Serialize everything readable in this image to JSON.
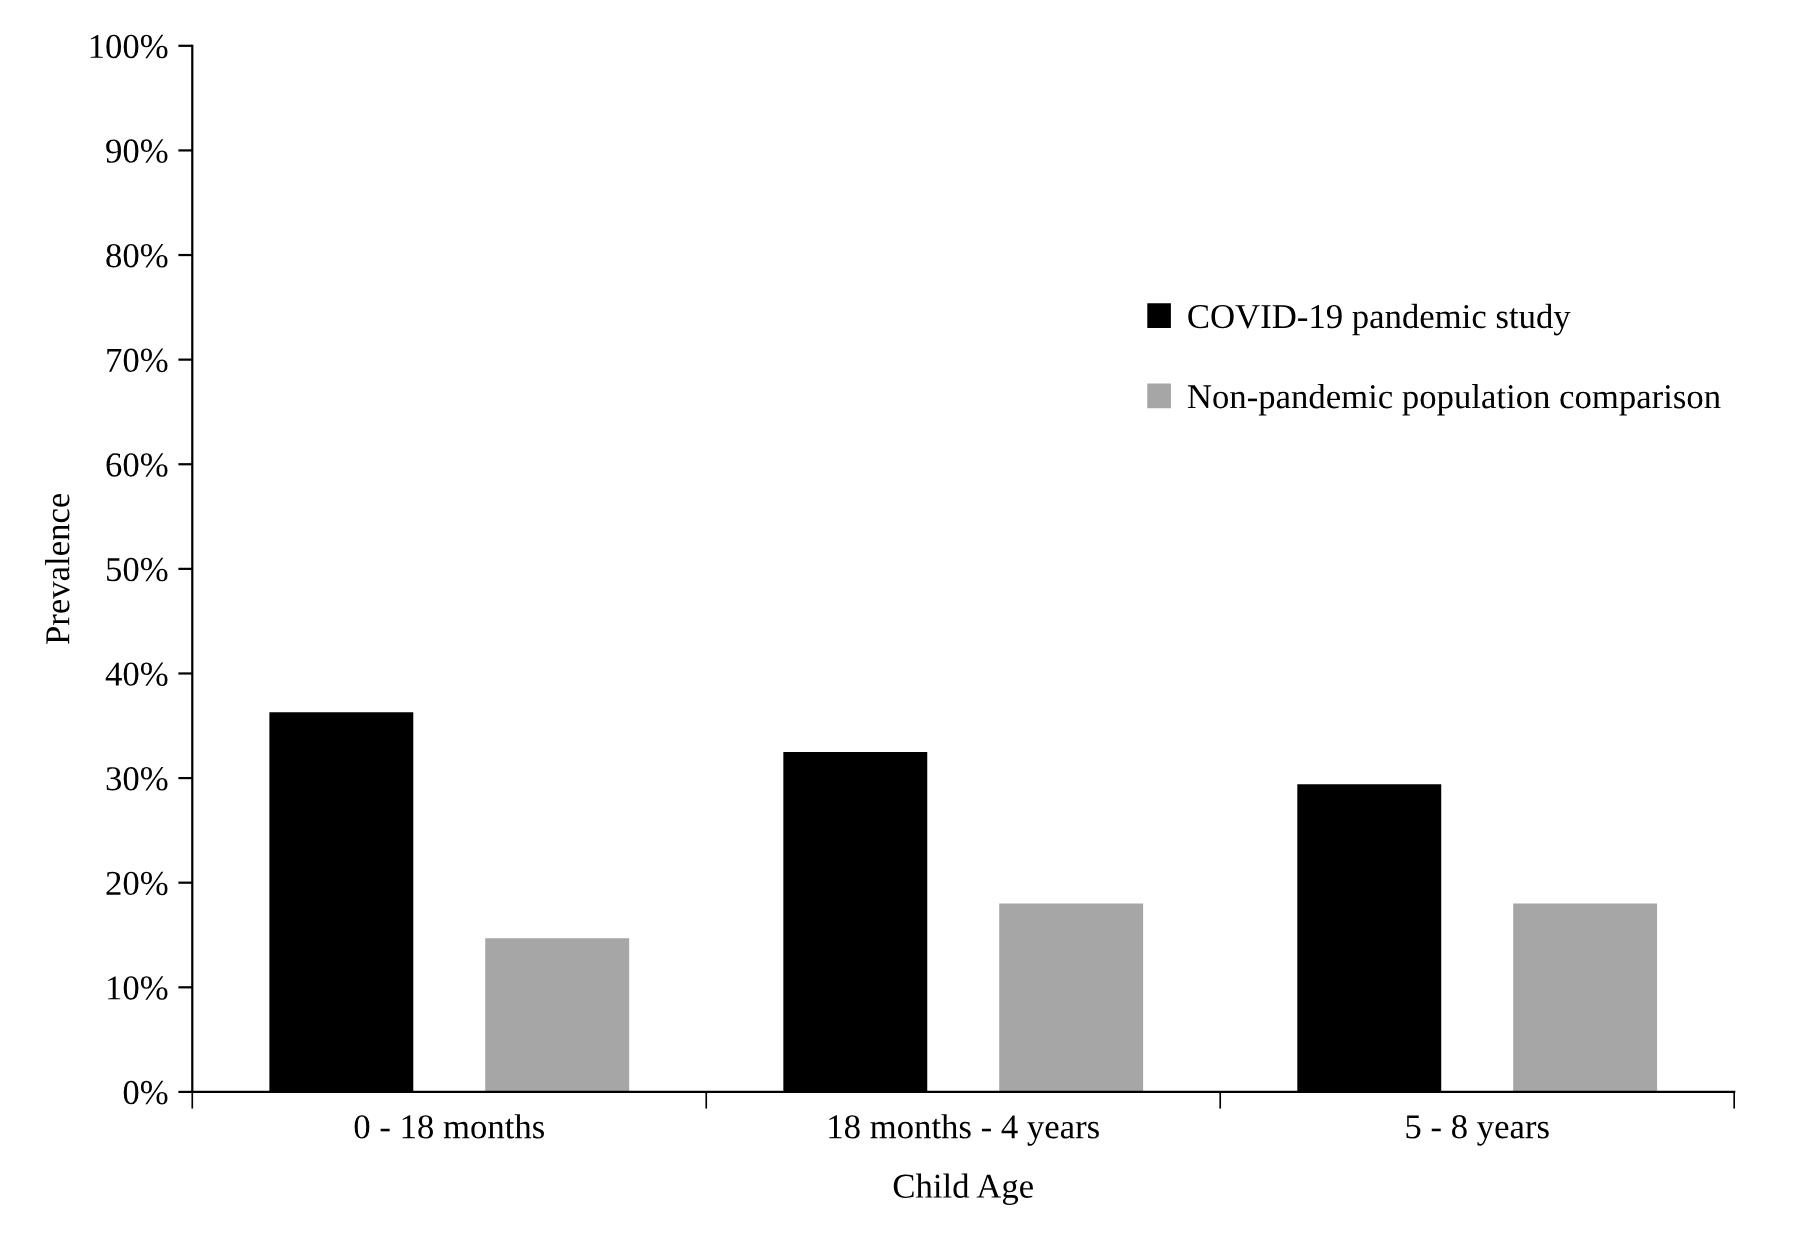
{
  "chart_data": {
    "type": "bar",
    "xlabel": "Child Age",
    "ylabel": "Prevalence",
    "categories": [
      "0 - 18 months",
      "18 months - 4 years",
      "5 - 8 years"
    ],
    "series": [
      {
        "name": "COVID-19 pandemic study",
        "color": "#000000",
        "values": [
          36.3,
          32.5,
          29.4
        ]
      },
      {
        "name": "Non-pandemic population comparison",
        "color": "#a6a6a6",
        "values": [
          14.7,
          18.0,
          18.0
        ]
      }
    ],
    "ylim": [
      0,
      100
    ],
    "yticks": [
      {
        "value": 0,
        "label": "0%"
      },
      {
        "value": 10,
        "label": "10%"
      },
      {
        "value": 20,
        "label": "20%"
      },
      {
        "value": 30,
        "label": "30%"
      },
      {
        "value": 40,
        "label": "40%"
      },
      {
        "value": 50,
        "label": "50%"
      },
      {
        "value": 60,
        "label": "60%"
      },
      {
        "value": 70,
        "label": "70%"
      },
      {
        "value": 80,
        "label": "80%"
      },
      {
        "value": 90,
        "label": "90%"
      },
      {
        "value": 100,
        "label": "100%"
      }
    ],
    "grid": false,
    "legend": "right"
  }
}
